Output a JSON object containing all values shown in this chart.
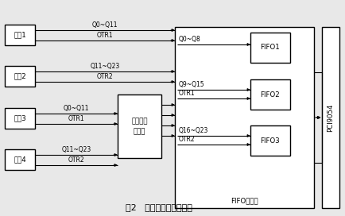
{
  "title": "图2   数据缓存传输示意图",
  "bg_color": "#e8e8e8",
  "line_color": "#000000",
  "channels": [
    "通道1",
    "通道2",
    "通道3",
    "通道4"
  ],
  "fifo_labels": [
    "FIFO1",
    "FIFO2",
    "FIFO3"
  ],
  "buffer_label": "高速数据\n锁存器",
  "fifo_group_label": "FIFO芯片组",
  "pci_label": "PCI9054",
  "ch1_signal1": "Q0~Q11",
  "ch1_signal2": "OTR1",
  "ch2_signal1": "Q11~Q23",
  "ch2_signal2": "OTR2",
  "ch3_signal1": "Q0~Q11",
  "ch3_signal2": "OTR1",
  "ch4_signal1": "Q11~Q23",
  "ch4_signal2": "OTR2",
  "fifo1_sig": "Q0~Q8",
  "fifo2_sig1": "Q9~Q15",
  "fifo2_sig2": "OTR1",
  "fifo3_sig1": "Q16~Q23",
  "fifo3_sig2": "OTR2"
}
